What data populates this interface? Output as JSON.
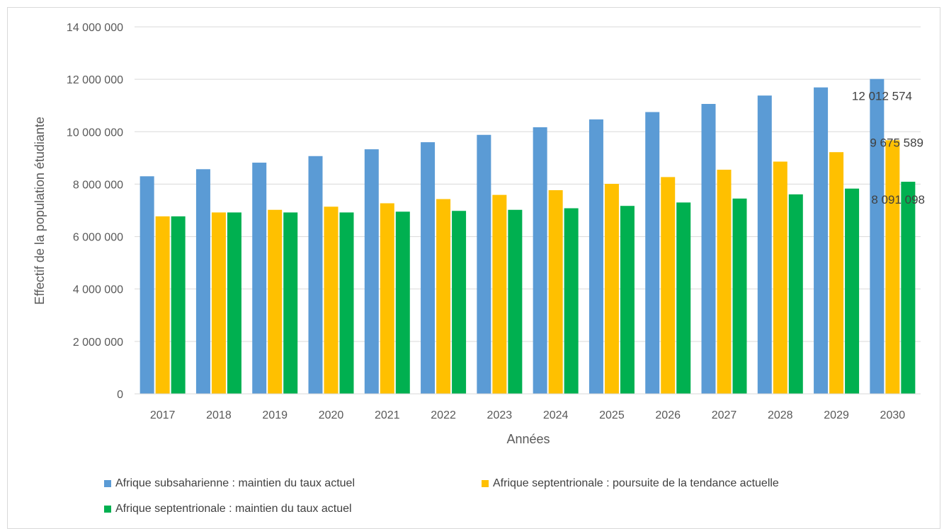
{
  "chart_data": {
    "type": "bar",
    "title": "",
    "xlabel": "Années",
    "ylabel": "Effectif de la population étudiante",
    "ylim": [
      0,
      14000000
    ],
    "yticks": [
      {
        "value": 0,
        "label": "0"
      },
      {
        "value": 2000000,
        "label": "2 000 000"
      },
      {
        "value": 4000000,
        "label": "4 000 000"
      },
      {
        "value": 6000000,
        "label": "6 000 000"
      },
      {
        "value": 8000000,
        "label": "8 000 000"
      },
      {
        "value": 10000000,
        "label": "10 000 000"
      },
      {
        "value": 12000000,
        "label": "12 000 000"
      },
      {
        "value": 14000000,
        "label": "14 000 000"
      }
    ],
    "grid": true,
    "legend_position": "bottom",
    "categories": [
      "2017",
      "2018",
      "2019",
      "2020",
      "2021",
      "2022",
      "2023",
      "2024",
      "2025",
      "2026",
      "2027",
      "2028",
      "2029",
      "2030"
    ],
    "series": [
      {
        "name": "Afrique subsaharienne : maintien du taux actuel",
        "color": "#5b9bd5",
        "values": [
          8300000,
          8570000,
          8820000,
          9070000,
          9330000,
          9600000,
          9880000,
          10170000,
          10470000,
          10750000,
          11060000,
          11380000,
          11690000,
          12012574
        ]
      },
      {
        "name": "Afrique septentrionale : poursuite de la tendance actuelle",
        "color": "#ffc000",
        "values": [
          6770000,
          6920000,
          7020000,
          7140000,
          7270000,
          7430000,
          7590000,
          7770000,
          8010000,
          8270000,
          8550000,
          8860000,
          9220000,
          9675589
        ]
      },
      {
        "name": "Afrique septentrionale : maintien du taux actuel",
        "color": "#00b050",
        "values": [
          6770000,
          6920000,
          6920000,
          6920000,
          6950000,
          6980000,
          7020000,
          7080000,
          7170000,
          7300000,
          7450000,
          7610000,
          7830000,
          8091098
        ]
      }
    ],
    "data_labels": [
      {
        "series": 0,
        "category": "2030",
        "text": "12 012 574"
      },
      {
        "series": 1,
        "category": "2030",
        "text": "9 675 589"
      },
      {
        "series": 2,
        "category": "2030",
        "text": "8 091 098"
      }
    ]
  }
}
